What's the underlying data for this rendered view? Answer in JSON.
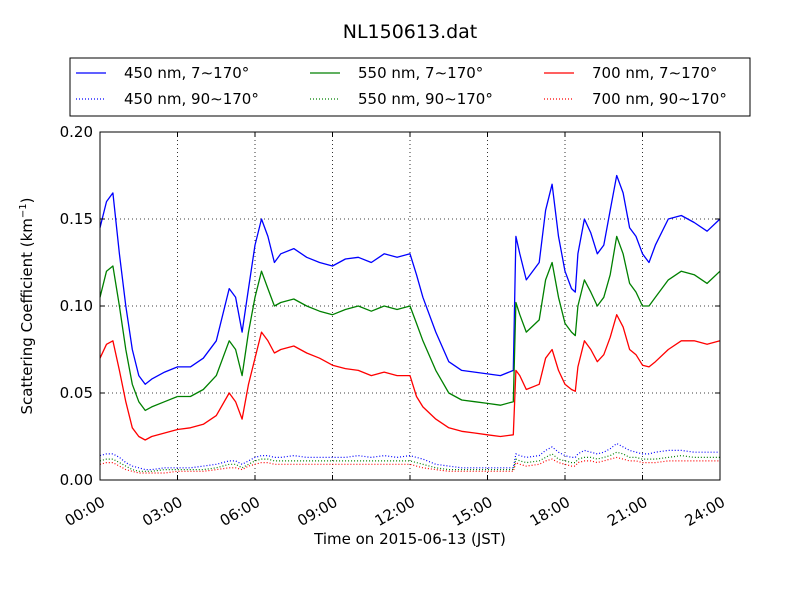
{
  "chart_data": {
    "type": "line",
    "title": "NL150613.dat",
    "xlabel": "Time on 2015-06-13 (JST)",
    "ylabel": "Scattering Coefficient (km",
    "ylabel_sup": "−1",
    "ylabel_close": ")",
    "xlim_hours": [
      0,
      24
    ],
    "ylim": [
      0,
      0.2
    ],
    "grid": true,
    "legend_position": "top",
    "x_ticks": [
      {
        "h": 0,
        "label": "00:00"
      },
      {
        "h": 3,
        "label": "03:00"
      },
      {
        "h": 6,
        "label": "06:00"
      },
      {
        "h": 9,
        "label": "09:00"
      },
      {
        "h": 12,
        "label": "12:00"
      },
      {
        "h": 15,
        "label": "15:00"
      },
      {
        "h": 18,
        "label": "18:00"
      },
      {
        "h": 21,
        "label": "21:00"
      },
      {
        "h": 24,
        "label": "24:00"
      }
    ],
    "y_ticks": [
      {
        "v": 0.0,
        "label": "0.00"
      },
      {
        "v": 0.05,
        "label": "0.05"
      },
      {
        "v": 0.1,
        "label": "0.10"
      },
      {
        "v": 0.15,
        "label": "0.15"
      },
      {
        "v": 0.2,
        "label": "0.20"
      }
    ],
    "x_hours": [
      0,
      0.25,
      0.5,
      0.75,
      1.0,
      1.25,
      1.5,
      1.75,
      2.0,
      2.5,
      3.0,
      3.5,
      4.0,
      4.5,
      5.0,
      5.25,
      5.5,
      5.75,
      6.0,
      6.25,
      6.5,
      6.75,
      7.0,
      7.5,
      8.0,
      8.5,
      9.0,
      9.5,
      10.0,
      10.5,
      11.0,
      11.5,
      12.0,
      12.25,
      12.5,
      13.0,
      13.5,
      14.0,
      14.5,
      15.0,
      15.5,
      16.0,
      16.1,
      16.25,
      16.5,
      17.0,
      17.25,
      17.5,
      17.75,
      18.0,
      18.25,
      18.4,
      18.5,
      18.75,
      19.0,
      19.25,
      19.5,
      19.75,
      20.0,
      20.25,
      20.5,
      20.75,
      21.0,
      21.25,
      21.5,
      22.0,
      22.5,
      23.0,
      23.5,
      24.0
    ],
    "series": [
      {
        "name": "450 nm, 7∼170°",
        "color": "#0000ff",
        "style": "solid",
        "values": [
          0.145,
          0.16,
          0.165,
          0.13,
          0.1,
          0.075,
          0.06,
          0.055,
          0.058,
          0.062,
          0.065,
          0.065,
          0.07,
          0.08,
          0.11,
          0.105,
          0.085,
          0.11,
          0.135,
          0.15,
          0.14,
          0.125,
          0.13,
          0.133,
          0.128,
          0.125,
          0.123,
          0.127,
          0.128,
          0.125,
          0.13,
          0.128,
          0.13,
          0.118,
          0.105,
          0.085,
          0.068,
          0.063,
          0.062,
          0.061,
          0.06,
          0.063,
          0.14,
          0.13,
          0.115,
          0.125,
          0.155,
          0.17,
          0.14,
          0.12,
          0.11,
          0.108,
          0.13,
          0.15,
          0.142,
          0.13,
          0.135,
          0.155,
          0.175,
          0.165,
          0.145,
          0.14,
          0.13,
          0.125,
          0.135,
          0.15,
          0.152,
          0.148,
          0.143,
          0.15
        ]
      },
      {
        "name": "550 nm, 7∼170°",
        "color": "#008000",
        "style": "solid",
        "values": [
          0.105,
          0.12,
          0.123,
          0.1,
          0.075,
          0.055,
          0.045,
          0.04,
          0.042,
          0.045,
          0.048,
          0.048,
          0.052,
          0.06,
          0.08,
          0.075,
          0.06,
          0.085,
          0.105,
          0.12,
          0.11,
          0.1,
          0.102,
          0.104,
          0.1,
          0.097,
          0.095,
          0.098,
          0.1,
          0.097,
          0.1,
          0.098,
          0.1,
          0.09,
          0.08,
          0.063,
          0.05,
          0.046,
          0.045,
          0.044,
          0.043,
          0.045,
          0.102,
          0.095,
          0.085,
          0.092,
          0.115,
          0.125,
          0.105,
          0.09,
          0.085,
          0.083,
          0.1,
          0.115,
          0.108,
          0.1,
          0.105,
          0.118,
          0.14,
          0.13,
          0.113,
          0.108,
          0.1,
          0.1,
          0.105,
          0.115,
          0.12,
          0.118,
          0.113,
          0.12
        ]
      },
      {
        "name": "700 nm, 7∼170°",
        "color": "#ff0000",
        "style": "solid",
        "values": [
          0.07,
          0.078,
          0.08,
          0.063,
          0.045,
          0.03,
          0.025,
          0.023,
          0.025,
          0.027,
          0.029,
          0.03,
          0.032,
          0.037,
          0.05,
          0.045,
          0.035,
          0.055,
          0.07,
          0.085,
          0.08,
          0.073,
          0.075,
          0.077,
          0.073,
          0.07,
          0.066,
          0.064,
          0.063,
          0.06,
          0.062,
          0.06,
          0.06,
          0.048,
          0.042,
          0.035,
          0.03,
          0.028,
          0.027,
          0.026,
          0.025,
          0.026,
          0.063,
          0.06,
          0.052,
          0.055,
          0.07,
          0.075,
          0.063,
          0.055,
          0.052,
          0.051,
          0.065,
          0.08,
          0.075,
          0.068,
          0.072,
          0.082,
          0.095,
          0.088,
          0.075,
          0.072,
          0.066,
          0.065,
          0.068,
          0.075,
          0.08,
          0.08,
          0.078,
          0.08
        ]
      },
      {
        "name": "450 nm, 90∼170°",
        "color": "#0000ff",
        "style": "dotted",
        "values": [
          0.014,
          0.015,
          0.015,
          0.013,
          0.01,
          0.008,
          0.007,
          0.006,
          0.006,
          0.007,
          0.007,
          0.007,
          0.008,
          0.009,
          0.011,
          0.011,
          0.009,
          0.011,
          0.013,
          0.014,
          0.014,
          0.013,
          0.013,
          0.014,
          0.013,
          0.013,
          0.013,
          0.013,
          0.014,
          0.013,
          0.014,
          0.013,
          0.014,
          0.013,
          0.012,
          0.009,
          0.008,
          0.007,
          0.007,
          0.007,
          0.007,
          0.007,
          0.015,
          0.014,
          0.013,
          0.014,
          0.017,
          0.019,
          0.016,
          0.014,
          0.013,
          0.013,
          0.015,
          0.017,
          0.016,
          0.015,
          0.016,
          0.018,
          0.021,
          0.019,
          0.017,
          0.016,
          0.015,
          0.015,
          0.016,
          0.017,
          0.017,
          0.016,
          0.016,
          0.016
        ]
      },
      {
        "name": "550 nm, 90∼170°",
        "color": "#008000",
        "style": "dotted",
        "values": [
          0.011,
          0.012,
          0.012,
          0.01,
          0.008,
          0.006,
          0.005,
          0.005,
          0.005,
          0.006,
          0.006,
          0.006,
          0.006,
          0.007,
          0.009,
          0.009,
          0.007,
          0.009,
          0.011,
          0.012,
          0.012,
          0.011,
          0.011,
          0.011,
          0.011,
          0.011,
          0.011,
          0.011,
          0.011,
          0.011,
          0.011,
          0.011,
          0.011,
          0.01,
          0.009,
          0.007,
          0.006,
          0.006,
          0.006,
          0.006,
          0.006,
          0.006,
          0.012,
          0.011,
          0.01,
          0.011,
          0.013,
          0.015,
          0.012,
          0.011,
          0.01,
          0.01,
          0.012,
          0.013,
          0.013,
          0.012,
          0.013,
          0.014,
          0.016,
          0.015,
          0.013,
          0.013,
          0.012,
          0.012,
          0.012,
          0.013,
          0.014,
          0.013,
          0.013,
          0.013
        ]
      },
      {
        "name": "700 nm, 90∼170°",
        "color": "#ff0000",
        "style": "dotted",
        "values": [
          0.009,
          0.01,
          0.01,
          0.008,
          0.006,
          0.005,
          0.004,
          0.004,
          0.004,
          0.004,
          0.005,
          0.005,
          0.005,
          0.006,
          0.007,
          0.007,
          0.006,
          0.008,
          0.009,
          0.01,
          0.01,
          0.009,
          0.009,
          0.009,
          0.009,
          0.009,
          0.009,
          0.009,
          0.009,
          0.009,
          0.009,
          0.009,
          0.009,
          0.008,
          0.007,
          0.006,
          0.005,
          0.005,
          0.005,
          0.005,
          0.005,
          0.005,
          0.01,
          0.009,
          0.008,
          0.009,
          0.011,
          0.012,
          0.01,
          0.009,
          0.008,
          0.008,
          0.01,
          0.011,
          0.011,
          0.01,
          0.011,
          0.012,
          0.013,
          0.012,
          0.011,
          0.011,
          0.01,
          0.01,
          0.01,
          0.011,
          0.011,
          0.011,
          0.011,
          0.011
        ]
      }
    ]
  }
}
